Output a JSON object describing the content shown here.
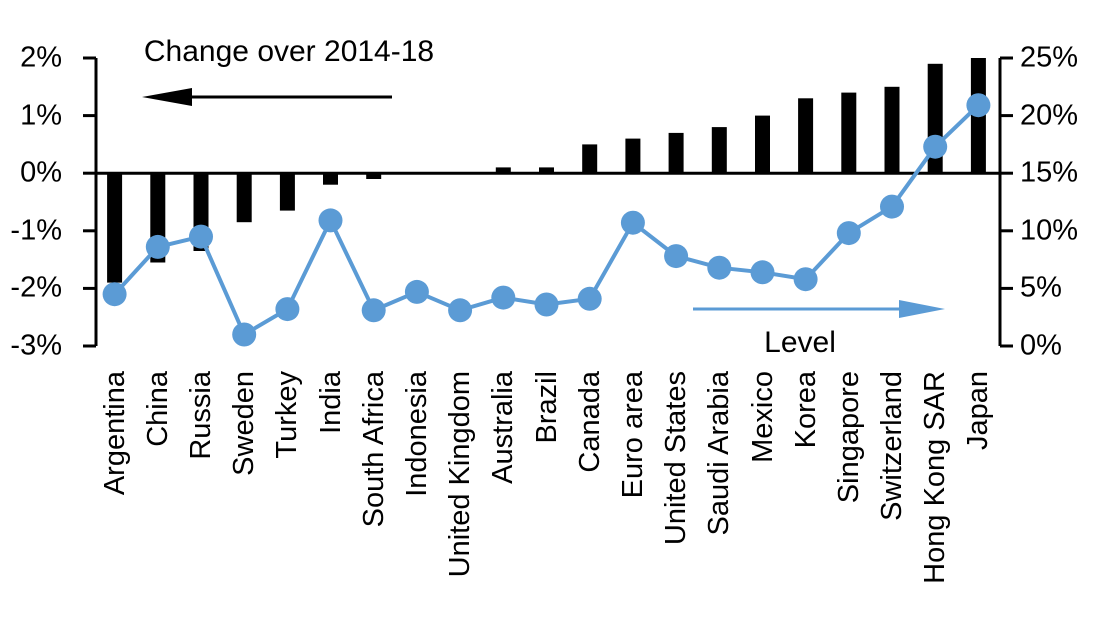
{
  "chart_data": {
    "type": "combo-bar-line",
    "title": "",
    "xlabel": "",
    "ylabel_left": "Change over 2014-18",
    "ylabel_right": "Level",
    "grid": false,
    "background": "#FFFFFF",
    "categories": [
      "Argentina",
      "China",
      "Russia",
      "Sweden",
      "Turkey",
      "India",
      "South Africa",
      "Indonesia",
      "United Kingdom",
      "Australia",
      "Brazil",
      "Canada",
      "Euro area",
      "United States",
      "Saudi Arabia",
      "Mexico",
      "Korea",
      "Singapore",
      "Switzerland",
      "Hong Kong SAR",
      "Japan"
    ],
    "series": [
      {
        "name": "Change over 2014-18",
        "type": "bar",
        "axis": "left",
        "color": "#000000",
        "values": [
          -1.9,
          -1.55,
          -1.35,
          -0.85,
          -0.65,
          -0.2,
          -0.1,
          0,
          0,
          0.1,
          0.1,
          0.5,
          0.6,
          0.7,
          0.8,
          1.0,
          1.3,
          1.4,
          1.5,
          1.9,
          2.0
        ]
      },
      {
        "name": "Level",
        "type": "line",
        "axis": "right",
        "color": "#5B9BD5",
        "values": [
          4.5,
          8.6,
          9.5,
          1.0,
          3.2,
          10.9,
          3.1,
          4.7,
          3.1,
          4.2,
          3.6,
          4.1,
          10.7,
          7.8,
          6.8,
          6.4,
          5.8,
          9.8,
          12.1,
          17.3,
          20.9
        ]
      }
    ],
    "left_axis": {
      "min": -3,
      "max": 2,
      "tick_values": [
        2,
        1,
        0,
        -1,
        -2,
        -3
      ],
      "tick_labels": [
        "2%",
        "1%",
        "0%",
        "-1%",
        "-2%",
        "-3%"
      ]
    },
    "right_axis": {
      "min": 0,
      "max": 25,
      "tick_values": [
        25,
        20,
        15,
        10,
        5,
        0
      ],
      "tick_labels": [
        "25%",
        "20%",
        "15%",
        "10%",
        "5%",
        "0%"
      ]
    },
    "annotations": [
      {
        "text": "Change over 2014-18",
        "arrow": "left",
        "color": "#000000"
      },
      {
        "text": "Level",
        "arrow": "right",
        "color": "#5B9BD5"
      }
    ]
  },
  "colors": {
    "bar": "#000000",
    "line": "#5B9BD5",
    "axis": "#000000",
    "text": "#000000",
    "background": "#FFFFFF"
  }
}
